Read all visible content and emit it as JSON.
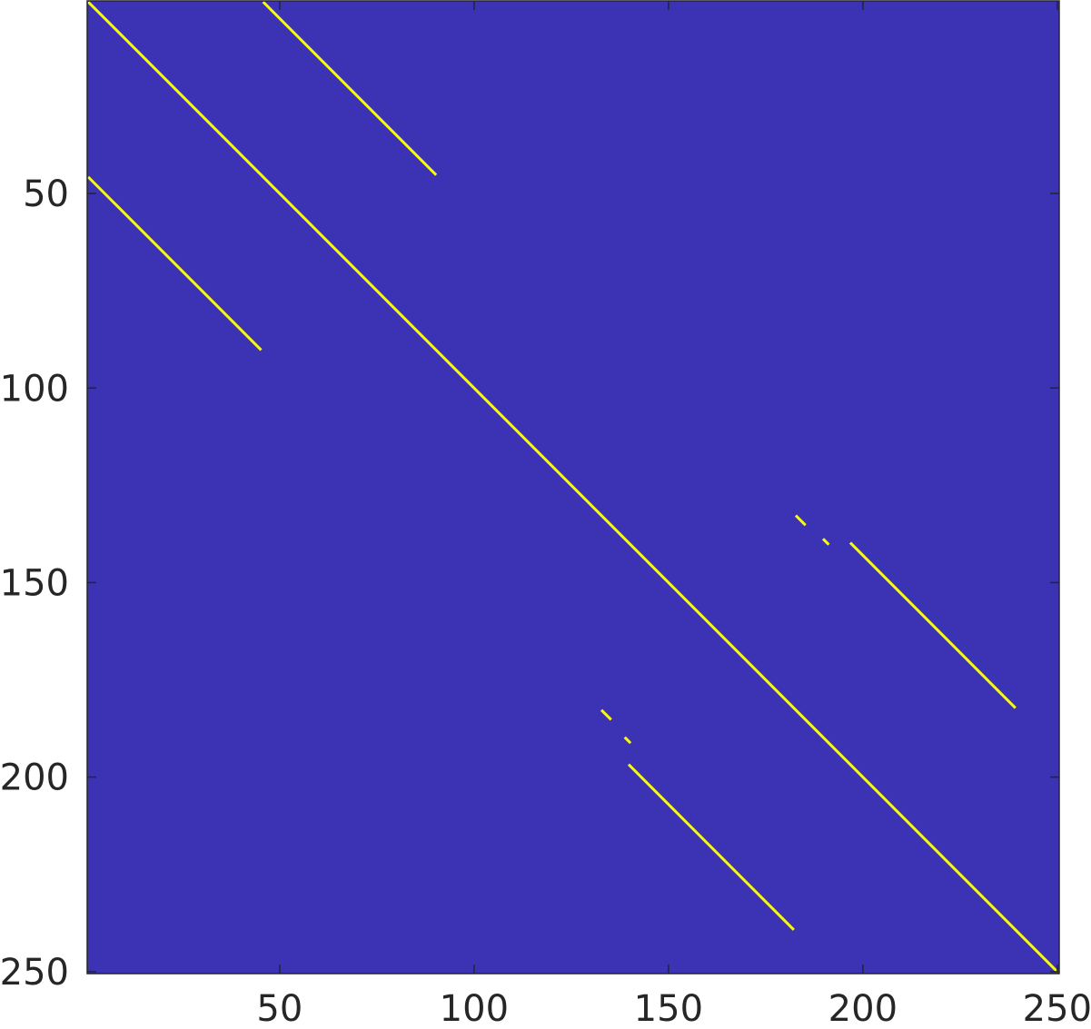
{
  "chart_data": {
    "type": "heatmap",
    "xlim": [
      0.5,
      250.5
    ],
    "ylim": [
      0.5,
      250.5
    ],
    "xticks": [
      50,
      100,
      150,
      200,
      250
    ],
    "yticks": [
      50,
      100,
      150,
      200,
      250
    ],
    "y_reversed": true,
    "background_color": "#3b33b4",
    "line_color": "#f9fb0e",
    "segments": [
      {
        "x": [
          1,
          250
        ],
        "y": [
          1,
          250
        ]
      },
      {
        "x": [
          46,
          90
        ],
        "y": [
          1,
          45
        ]
      },
      {
        "x": [
          1,
          45
        ],
        "y": [
          46,
          90
        ]
      },
      {
        "x": [
          183,
          185
        ],
        "y": [
          133,
          135
        ]
      },
      {
        "x": [
          190,
          191
        ],
        "y": [
          139,
          140
        ]
      },
      {
        "x": [
          197,
          239
        ],
        "y": [
          140,
          182
        ]
      },
      {
        "x": [
          133,
          135
        ],
        "y": [
          183,
          185
        ]
      },
      {
        "x": [
          139,
          140
        ],
        "y": [
          190,
          191
        ]
      },
      {
        "x": [
          140,
          182
        ],
        "y": [
          197,
          239
        ]
      }
    ]
  }
}
